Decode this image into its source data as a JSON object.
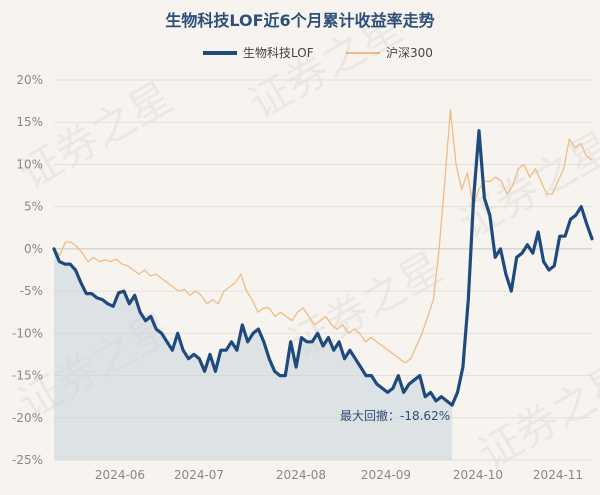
{
  "chart_data": {
    "type": "line",
    "title": "生物科技LOF近6个月累计收益率走势",
    "xlabel": "",
    "ylabel": "",
    "y_unit": "%",
    "ylim": [
      -25,
      20
    ],
    "y_ticks": [
      20,
      15,
      10,
      5,
      0,
      -5,
      -10,
      -15,
      -20,
      -25
    ],
    "y_tick_labels": [
      "20%",
      "15%",
      "10%",
      "5%",
      "0%",
      "-5%",
      "-10%",
      "-15%",
      "-20%",
      "-25%"
    ],
    "x_ticks": [
      "2024-06",
      "2024-07",
      "2024-08",
      "2024-09",
      "2024-10",
      "2024-11"
    ],
    "grid": "horizontal",
    "legend_position": "top-center",
    "series": [
      {
        "name": "生物科技LOF",
        "color": "#1f4a7e",
        "values": [
          0.0,
          -1.5,
          -1.8,
          -1.8,
          -2.5,
          -4.0,
          -5.3,
          -5.3,
          -5.8,
          -6.0,
          -6.5,
          -6.8,
          -5.2,
          -5.0,
          -6.5,
          -5.5,
          -7.5,
          -8.5,
          -8.0,
          -9.5,
          -10.0,
          -11.0,
          -12.0,
          -10.0,
          -12.0,
          -13.0,
          -12.5,
          -13.0,
          -14.5,
          -12.5,
          -14.5,
          -12.0,
          -12.0,
          -11.0,
          -12.0,
          -9.0,
          -11.0,
          -10.0,
          -9.5,
          -11.0,
          -13.0,
          -14.5,
          -15.0,
          -15.0,
          -11.0,
          -14.0,
          -10.5,
          -11.0,
          -11.0,
          -10.0,
          -11.5,
          -10.5,
          -12.0,
          -11.0,
          -13.0,
          -12.0,
          -13.0,
          -14.0,
          -15.0,
          -15.0,
          -16.0,
          -16.5,
          -17.0,
          -16.5,
          -15.0,
          -17.0,
          -16.0,
          -15.5,
          -15.0,
          -17.5,
          -17.0,
          -18.0,
          -17.5,
          -18.0,
          -18.5,
          -17.0,
          -14.0,
          -6.0,
          6.0,
          14.0,
          6.0,
          4.0,
          -1.0,
          0.0,
          -3.0,
          -5.0,
          -1.0,
          -0.5,
          0.5,
          -0.5,
          2.0,
          -1.5,
          -2.5,
          -2.0,
          1.5,
          1.5,
          3.5,
          4.0,
          5.0,
          3.0,
          1.2
        ],
        "min_label": "最大回撤：-18.62%"
      },
      {
        "name": "沪深300",
        "color": "#f0bb86",
        "values": [
          0.0,
          -0.8,
          0.8,
          0.8,
          0.3,
          -0.5,
          -1.5,
          -1.0,
          -1.5,
          -1.3,
          -1.5,
          -1.2,
          -1.8,
          -2.0,
          -2.5,
          -3.0,
          -2.5,
          -3.2,
          -3.0,
          -3.5,
          -4.0,
          -4.5,
          -5.0,
          -4.8,
          -5.5,
          -5.0,
          -5.5,
          -6.5,
          -6.0,
          -6.5,
          -5.0,
          -4.5,
          -4.0,
          -3.0,
          -5.0,
          -6.0,
          -7.5,
          -7.0,
          -7.0,
          -8.0,
          -7.5,
          -8.0,
          -8.5,
          -7.5,
          -7.0,
          -8.0,
          -9.0,
          -8.5,
          -8.0,
          -9.0,
          -9.5,
          -9.0,
          -10.0,
          -9.5,
          -10.0,
          -11.0,
          -10.5,
          -11.0,
          -11.5,
          -12.0,
          -12.5,
          -13.0,
          -13.5,
          -13.0,
          -11.5,
          -10.0,
          -8.0,
          -6.0,
          0.0,
          8.0,
          16.5,
          10.0,
          7.0,
          9.0,
          5.0,
          7.0,
          8.0,
          8.0,
          8.5,
          8.0,
          6.5,
          7.5,
          9.5,
          10.0,
          8.5,
          9.5,
          8.0,
          6.5,
          6.5,
          8.0,
          9.5,
          13.0,
          12.0,
          12.5,
          11.0,
          10.5
        ]
      }
    ]
  },
  "watermark": "证券之星"
}
